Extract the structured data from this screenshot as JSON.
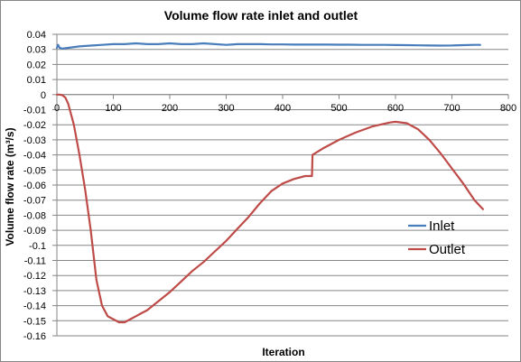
{
  "chart_data": {
    "type": "line",
    "title": "Volume flow rate inlet and outlet",
    "xlabel": "Iteration",
    "ylabel": "Volume flow rate (m³/s)",
    "xlim": [
      0,
      800
    ],
    "ylim": [
      -0.16,
      0.04
    ],
    "x_ticks": [
      0,
      100,
      200,
      300,
      400,
      500,
      600,
      700,
      800
    ],
    "x_tick_labels": [
      "0",
      "100",
      "200",
      "300",
      "400",
      "500",
      "600",
      "700",
      "800"
    ],
    "y_ticks": [
      0.04,
      0.03,
      0.02,
      0.01,
      0,
      -0.01,
      -0.02,
      -0.03,
      -0.04,
      -0.05,
      -0.06,
      -0.07,
      -0.08,
      -0.09,
      -0.1,
      -0.11,
      -0.12,
      -0.13,
      -0.14,
      -0.15,
      -0.16
    ],
    "y_tick_labels": [
      "0.04",
      "0.03",
      "0.02",
      "0.01",
      "0",
      "-0.01",
      "-0.02",
      "-0.03",
      "-0.04",
      "-0.05",
      "-0.06",
      "-0.07",
      "-0.08",
      "-0.09",
      "-0.1",
      "-0.11",
      "-0.12",
      "-0.13",
      "-0.14",
      "-0.15",
      "-0.16"
    ],
    "grid": "horizontal",
    "legend_position": "right",
    "series": [
      {
        "name": "Inlet",
        "color": "#4A7EBB",
        "x": [
          0,
          2,
          5,
          10,
          20,
          40,
          60,
          80,
          100,
          120,
          140,
          160,
          180,
          200,
          220,
          240,
          260,
          280,
          300,
          320,
          340,
          360,
          380,
          400,
          420,
          440,
          460,
          480,
          500,
          520,
          540,
          560,
          580,
          600,
          620,
          640,
          660,
          680,
          700,
          720,
          740,
          750
        ],
        "y": [
          0.031,
          0.033,
          0.031,
          0.0305,
          0.031,
          0.032,
          0.0325,
          0.033,
          0.0335,
          0.0335,
          0.034,
          0.0335,
          0.0335,
          0.034,
          0.0335,
          0.0335,
          0.034,
          0.0335,
          0.033,
          0.0335,
          0.0335,
          0.0335,
          0.0333,
          0.0333,
          0.0332,
          0.0332,
          0.0332,
          0.0332,
          0.0331,
          0.0331,
          0.033,
          0.033,
          0.033,
          0.0329,
          0.0328,
          0.0327,
          0.0326,
          0.0325,
          0.0326,
          0.0328,
          0.033,
          0.033
        ]
      },
      {
        "name": "Outlet",
        "color": "#BE4B48",
        "x": [
          0,
          5,
          10,
          15,
          20,
          30,
          40,
          50,
          60,
          70,
          80,
          90,
          100,
          110,
          120,
          130,
          140,
          150,
          160,
          180,
          200,
          220,
          240,
          260,
          280,
          300,
          320,
          340,
          360,
          380,
          400,
          420,
          440,
          452,
          453,
          470,
          500,
          530,
          560,
          590,
          600,
          620,
          640,
          660,
          680,
          700,
          720,
          740,
          755
        ],
        "y": [
          0,
          0,
          -0.0005,
          -0.002,
          -0.006,
          -0.02,
          -0.04,
          -0.063,
          -0.09,
          -0.123,
          -0.14,
          -0.147,
          -0.149,
          -0.151,
          -0.151,
          -0.149,
          -0.147,
          -0.145,
          -0.143,
          -0.137,
          -0.131,
          -0.124,
          -0.117,
          -0.111,
          -0.104,
          -0.097,
          -0.089,
          -0.081,
          -0.072,
          -0.064,
          -0.059,
          -0.056,
          -0.054,
          -0.054,
          -0.04,
          -0.036,
          -0.03,
          -0.025,
          -0.021,
          -0.0185,
          -0.018,
          -0.019,
          -0.023,
          -0.03,
          -0.039,
          -0.049,
          -0.059,
          -0.07,
          -0.076
        ]
      }
    ]
  }
}
